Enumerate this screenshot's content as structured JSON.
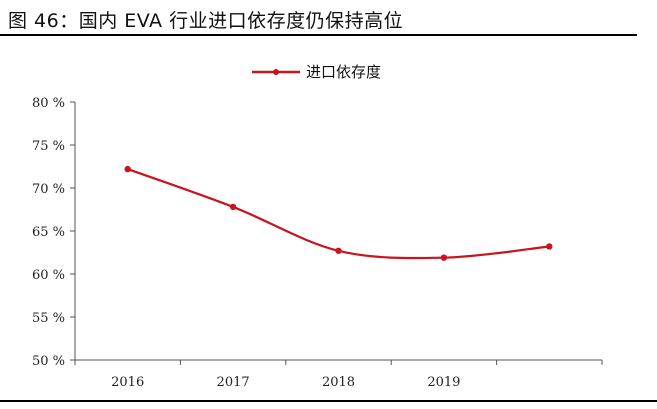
{
  "figure_title": "图 46：国内 EVA 行业进口依存度仍保持高位",
  "colors": {
    "series": "#c8141e",
    "axis": "#555555",
    "text": "#222222"
  },
  "chart_data": {
    "type": "line",
    "x": [
      "2016",
      "2017",
      "2018",
      "2019",
      "2020"
    ],
    "x_tick_labels": [
      "2016",
      "2017",
      "2018",
      "2019",
      ""
    ],
    "series": [
      {
        "name": "进口依存度",
        "values": [
          72.2,
          67.8,
          62.7,
          61.9,
          63.2
        ]
      }
    ],
    "ylim": [
      50,
      80
    ],
    "y_ticks": [
      50,
      55,
      60,
      65,
      70,
      75,
      80
    ],
    "y_tick_labels": [
      "50 %",
      "55 %",
      "60 %",
      "65 %",
      "70 %",
      "75 %",
      "80 %"
    ],
    "grid": false,
    "legend": "top-center",
    "title": "",
    "xlabel": "",
    "ylabel": ""
  }
}
